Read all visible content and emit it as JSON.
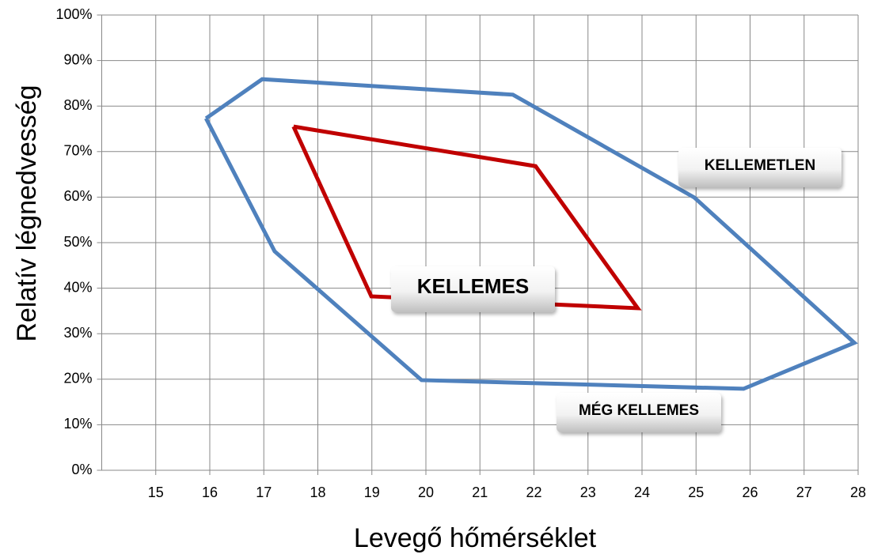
{
  "chart_data": {
    "type": "line",
    "x_label": "Levegő hőmérséklet",
    "y_label": "Relatív légnedvesség",
    "xlim": [
      14,
      28
    ],
    "xticks": [
      15,
      16,
      17,
      18,
      19,
      20,
      21,
      22,
      23,
      24,
      25,
      26,
      27,
      28
    ],
    "ylim": [
      0,
      100
    ],
    "yticks": [
      {
        "value": 0,
        "label": "0%"
      },
      {
        "value": 10,
        "label": "10%"
      },
      {
        "value": 20,
        "label": "20%"
      },
      {
        "value": 30,
        "label": "30%"
      },
      {
        "value": 40,
        "label": "40%"
      },
      {
        "value": 50,
        "label": "50%"
      },
      {
        "value": 60,
        "label": "60%"
      },
      {
        "value": 70,
        "label": "70%"
      },
      {
        "value": 80,
        "label": "80%"
      },
      {
        "value": 90,
        "label": "90%"
      },
      {
        "value": 100,
        "label": "100%"
      }
    ],
    "grid": true,
    "series": [
      {
        "color": "#4f81bd",
        "x": [
          15.93,
          16.97,
          21.61,
          24.97,
          27.93,
          25.88,
          19.92,
          17.2,
          15.93
        ],
        "values": [
          77.3,
          85.9,
          82.5,
          59.9,
          28,
          17.9,
          19.8,
          48.1,
          77.3
        ]
      },
      {
        "color": "#c00000",
        "x": [
          17.55,
          22.03,
          23.92,
          18.99,
          17.55
        ],
        "values": [
          75.5,
          66.8,
          35.6,
          38.2,
          75.5
        ]
      }
    ],
    "annotations": [
      "KELLEMETLEN",
      "KELLEMES",
      "MÉG KELLEMES"
    ]
  }
}
